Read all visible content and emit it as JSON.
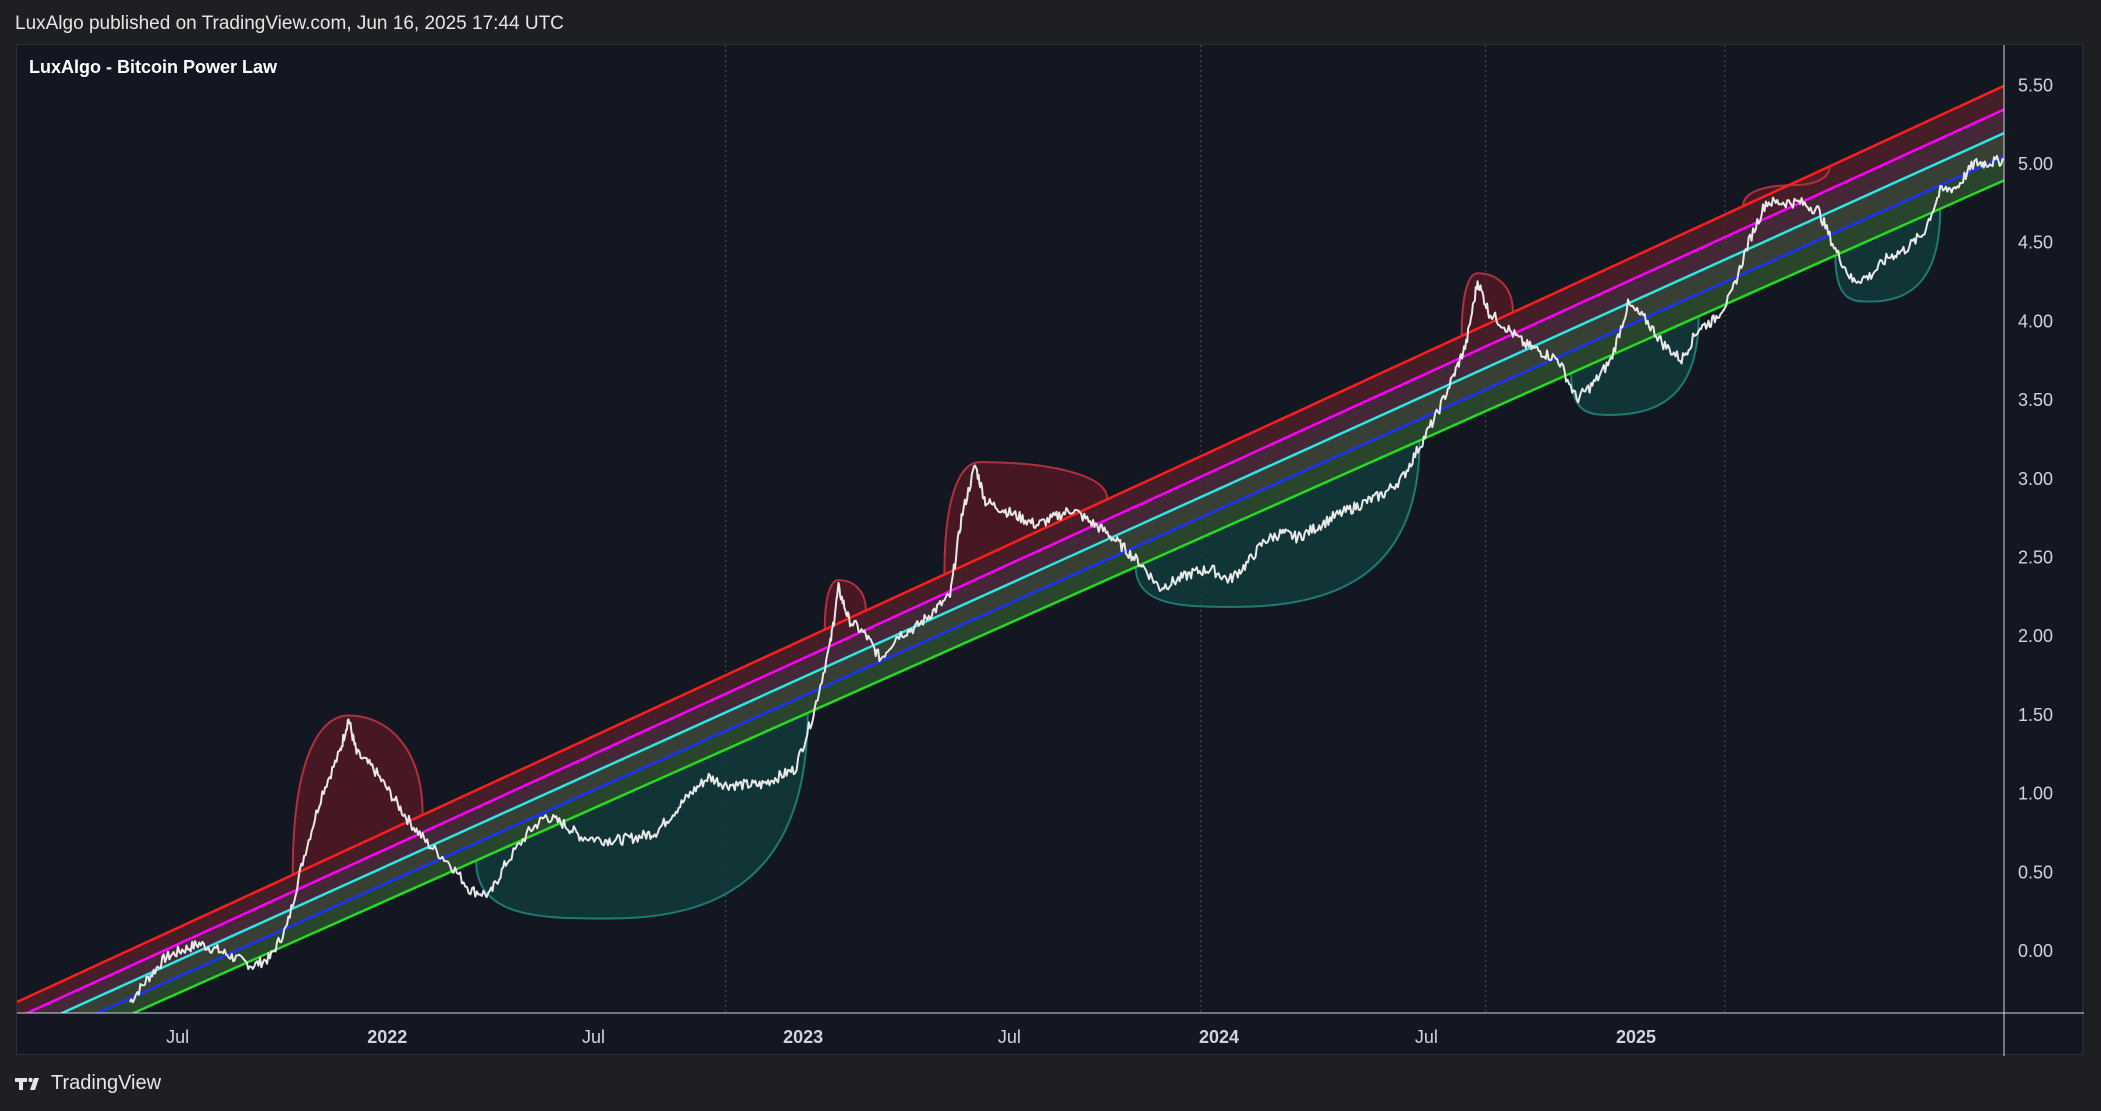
{
  "header": {
    "publish_text": "LuxAlgo published on TradingView.com, Jun 16, 2025 17:44 UTC"
  },
  "footer": {
    "brand": "TradingView",
    "brand_icon": "tradingview-logo-icon"
  },
  "colors": {
    "background": "#131722",
    "price": "#e8e8e8",
    "band_red": "#ff1e1e",
    "band_magenta": "#ff00ff",
    "band_cyan": "#2ee6e6",
    "band_blue": "#1a33ff",
    "band_green": "#22dd22",
    "peak_fill": "#5a1a26",
    "trough_fill": "#123c3c"
  },
  "chart_data": {
    "type": "line",
    "title": "LuxAlgo - Bitcoin Power Law",
    "xlabel": "",
    "ylabel": "",
    "x_range": [
      "2021-02-10",
      "2025-11-20"
    ],
    "ylim": [
      -0.4,
      5.75
    ],
    "yticks": [
      0.0,
      0.5,
      1.0,
      1.5,
      2.0,
      2.5,
      3.0,
      3.5,
      4.0,
      4.5,
      5.0,
      5.5
    ],
    "xticks": [
      {
        "date": "2021-07-01",
        "label": "Jul"
      },
      {
        "date": "2022-01-01",
        "label": "2022"
      },
      {
        "date": "2022-07-01",
        "label": "Jul"
      },
      {
        "date": "2023-01-01",
        "label": "2023"
      },
      {
        "date": "2023-07-01",
        "label": "Jul"
      },
      {
        "date": "2024-01-01",
        "label": "2024"
      },
      {
        "date": "2024-07-01",
        "label": "Jul"
      },
      {
        "date": "2025-01-01",
        "label": "2025"
      }
    ],
    "grid": false,
    "session_lines": [
      "2022-10-25",
      "2023-12-16",
      "2024-08-22",
      "2025-03-20"
    ],
    "bands": [
      {
        "color": "#ff1e1e",
        "points": [
          [
            "2021-02-10",
            -0.33
          ],
          [
            "2025-11-20",
            5.49
          ]
        ]
      },
      {
        "color": "#ff00ff",
        "points": [
          [
            "2021-02-10",
            -0.43
          ],
          [
            "2025-11-20",
            5.34
          ]
        ]
      },
      {
        "color": "#2ee6e6",
        "points": [
          [
            "2021-02-10",
            -0.53
          ],
          [
            "2025-11-20",
            5.19
          ]
        ]
      },
      {
        "color": "#1a33ff",
        "points": [
          [
            "2021-02-10",
            -0.63
          ],
          [
            "2025-11-20",
            5.04
          ]
        ]
      },
      {
        "color": "#22dd22",
        "points": [
          [
            "2021-02-10",
            -0.73
          ],
          [
            "2025-11-20",
            4.89
          ]
        ]
      }
    ],
    "price": [
      [
        "2021-05-20",
        -0.33
      ],
      [
        "2021-06-05",
        -0.18
      ],
      [
        "2021-06-20",
        -0.05
      ],
      [
        "2021-07-05",
        0.0
      ],
      [
        "2021-07-20",
        0.04
      ],
      [
        "2021-08-05",
        0.0
      ],
      [
        "2021-08-20",
        -0.05
      ],
      [
        "2021-09-05",
        -0.1
      ],
      [
        "2021-09-20",
        -0.05
      ],
      [
        "2021-10-05",
        0.15
      ],
      [
        "2021-10-20",
        0.6
      ],
      [
        "2021-11-05",
        1.0
      ],
      [
        "2021-11-20",
        1.25
      ],
      [
        "2021-11-28",
        1.47
      ],
      [
        "2021-12-05",
        1.25
      ],
      [
        "2021-12-20",
        1.15
      ],
      [
        "2022-01-05",
        0.98
      ],
      [
        "2022-01-20",
        0.82
      ],
      [
        "2022-02-05",
        0.68
      ],
      [
        "2022-02-25",
        0.55
      ],
      [
        "2022-03-15",
        0.38
      ],
      [
        "2022-04-01",
        0.35
      ],
      [
        "2022-04-15",
        0.55
      ],
      [
        "2022-05-05",
        0.75
      ],
      [
        "2022-05-20",
        0.85
      ],
      [
        "2022-06-05",
        0.8
      ],
      [
        "2022-06-20",
        0.72
      ],
      [
        "2022-07-10",
        0.7
      ],
      [
        "2022-07-25",
        0.7
      ],
      [
        "2022-08-10",
        0.72
      ],
      [
        "2022-08-25",
        0.75
      ],
      [
        "2022-09-10",
        0.88
      ],
      [
        "2022-09-25",
        1.0
      ],
      [
        "2022-10-10",
        1.1
      ],
      [
        "2022-10-25",
        1.05
      ],
      [
        "2022-11-10",
        1.05
      ],
      [
        "2022-11-25",
        1.05
      ],
      [
        "2022-12-10",
        1.1
      ],
      [
        "2022-12-25",
        1.15
      ],
      [
        "2023-01-10",
        1.5
      ],
      [
        "2023-01-25",
        1.95
      ],
      [
        "2023-02-01",
        2.3
      ],
      [
        "2023-02-10",
        2.1
      ],
      [
        "2023-02-25",
        2.0
      ],
      [
        "2023-03-10",
        1.85
      ],
      [
        "2023-03-25",
        2.0
      ],
      [
        "2023-04-10",
        2.05
      ],
      [
        "2023-04-25",
        2.15
      ],
      [
        "2023-05-10",
        2.25
      ],
      [
        "2023-05-20",
        2.75
      ],
      [
        "2023-06-01",
        3.08
      ],
      [
        "2023-06-10",
        2.85
      ],
      [
        "2023-06-25",
        2.8
      ],
      [
        "2023-07-10",
        2.75
      ],
      [
        "2023-07-25",
        2.7
      ],
      [
        "2023-08-10",
        2.75
      ],
      [
        "2023-08-25",
        2.8
      ],
      [
        "2023-09-10",
        2.72
      ],
      [
        "2023-09-25",
        2.65
      ],
      [
        "2023-10-10",
        2.55
      ],
      [
        "2023-10-25",
        2.45
      ],
      [
        "2023-11-10",
        2.3
      ],
      [
        "2023-11-25",
        2.35
      ],
      [
        "2023-12-10",
        2.4
      ],
      [
        "2023-12-25",
        2.42
      ],
      [
        "2024-01-10",
        2.35
      ],
      [
        "2024-01-25",
        2.45
      ],
      [
        "2024-02-10",
        2.6
      ],
      [
        "2024-02-25",
        2.65
      ],
      [
        "2024-03-10",
        2.62
      ],
      [
        "2024-03-25",
        2.68
      ],
      [
        "2024-04-10",
        2.75
      ],
      [
        "2024-04-25",
        2.8
      ],
      [
        "2024-05-10",
        2.85
      ],
      [
        "2024-05-25",
        2.9
      ],
      [
        "2024-06-10",
        3.0
      ],
      [
        "2024-06-25",
        3.2
      ],
      [
        "2024-07-10",
        3.4
      ],
      [
        "2024-07-25",
        3.65
      ],
      [
        "2024-08-05",
        3.85
      ],
      [
        "2024-08-15",
        4.25
      ],
      [
        "2024-08-25",
        4.05
      ],
      [
        "2024-09-10",
        3.95
      ],
      [
        "2024-09-25",
        3.85
      ],
      [
        "2024-10-10",
        3.8
      ],
      [
        "2024-10-25",
        3.75
      ],
      [
        "2024-11-10",
        3.5
      ],
      [
        "2024-11-25",
        3.6
      ],
      [
        "2024-12-10",
        3.75
      ],
      [
        "2024-12-25",
        4.1
      ],
      [
        "2025-01-10",
        4.0
      ],
      [
        "2025-01-25",
        3.85
      ],
      [
        "2025-02-10",
        3.75
      ],
      [
        "2025-02-25",
        3.95
      ],
      [
        "2025-03-10",
        4.0
      ],
      [
        "2025-03-25",
        4.15
      ],
      [
        "2025-04-10",
        4.5
      ],
      [
        "2025-04-25",
        4.75
      ],
      [
        "2025-05-10",
        4.75
      ],
      [
        "2025-05-25",
        4.75
      ],
      [
        "2025-06-10",
        4.7
      ],
      [
        "2025-06-25",
        4.45
      ],
      [
        "2025-07-10",
        4.25
      ],
      [
        "2025-07-25",
        4.28
      ],
      [
        "2025-08-10",
        4.4
      ],
      [
        "2025-08-25",
        4.45
      ],
      [
        "2025-09-10",
        4.55
      ],
      [
        "2025-09-25",
        4.82
      ],
      [
        "2025-10-10",
        4.85
      ],
      [
        "2025-10-25",
        5.0
      ],
      [
        "2025-11-05",
        5.0
      ],
      [
        "2025-11-20",
        5.02
      ]
    ],
    "peak_arcs": [
      {
        "start": "2021-10-10",
        "peak": [
          "2021-11-28",
          1.49
        ],
        "end": "2022-02-01"
      },
      {
        "start": "2023-01-20",
        "peak": [
          "2023-02-01",
          2.35
        ],
        "end": "2023-02-25"
      },
      {
        "start": "2023-05-05",
        "peak": [
          "2023-06-05",
          3.1
        ],
        "end": "2023-09-25"
      },
      {
        "start": "2024-08-01",
        "peak": [
          "2024-08-15",
          4.3
        ],
        "end": "2024-09-15"
      },
      {
        "start": "2025-04-05",
        "peak": [
          "2025-05-20",
          4.86
        ],
        "end": "2025-06-20"
      }
    ],
    "trough_arcs": [
      {
        "start": "2022-03-20",
        "bottom": [
          "2022-07-15",
          0.2
        ],
        "end": "2023-01-05"
      },
      {
        "start": "2023-10-20",
        "bottom": [
          "2024-01-15",
          2.18
        ],
        "end": "2024-06-25"
      },
      {
        "start": "2024-11-05",
        "bottom": [
          "2024-12-10",
          3.4
        ],
        "end": "2025-02-25"
      },
      {
        "start": "2025-06-25",
        "bottom": [
          "2025-07-25",
          4.12
        ],
        "end": "2025-09-25"
      }
    ]
  }
}
